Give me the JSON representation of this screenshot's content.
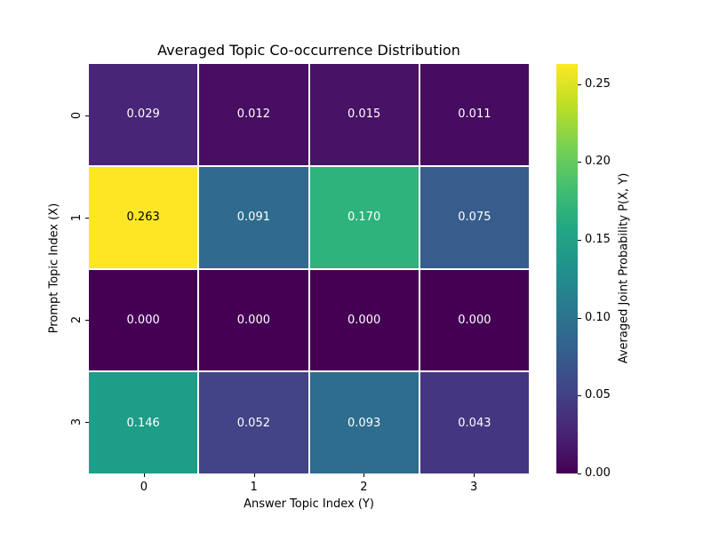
{
  "figure": {
    "background_color": "#ffffff",
    "annotation_text_light": "#ffffff",
    "annotation_text_dark": "#000000"
  },
  "chart_data": {
    "type": "heatmap",
    "title": "Averaged Topic Co-occurrence Distribution",
    "xlabel": "Answer Topic Index (Y)",
    "ylabel": "Prompt Topic Index (X)",
    "x_tick_labels": [
      "0",
      "1",
      "2",
      "3"
    ],
    "y_tick_labels": [
      "0",
      "1",
      "2",
      "3"
    ],
    "matrix": [
      [
        0.029,
        0.012,
        0.015,
        0.011
      ],
      [
        0.263,
        0.091,
        0.17,
        0.075
      ],
      [
        0.0,
        0.0,
        0.0,
        0.0
      ],
      [
        0.146,
        0.052,
        0.093,
        0.043
      ]
    ],
    "cell_labels": [
      [
        "0.029",
        "0.012",
        "0.015",
        "0.011"
      ],
      [
        "0.263",
        "0.091",
        "0.170",
        "0.075"
      ],
      [
        "0.000",
        "0.000",
        "0.000",
        "0.000"
      ],
      [
        "0.146",
        "0.052",
        "0.093",
        "0.043"
      ]
    ],
    "cell_colors": [
      [
        "#482576",
        "#470e61",
        "#481265",
        "#460c5f"
      ],
      [
        "#fde725",
        "#2f6b8e",
        "#2eb37d",
        "#375d8c"
      ],
      [
        "#440154",
        "#440154",
        "#440154",
        "#440154"
      ],
      [
        "#1e9d89",
        "#424487",
        "#2e6d8e",
        "#453681"
      ]
    ],
    "cell_text_colors": [
      [
        "#ffffff",
        "#ffffff",
        "#ffffff",
        "#ffffff"
      ],
      [
        "#000000",
        "#ffffff",
        "#ffffff",
        "#ffffff"
      ],
      [
        "#ffffff",
        "#ffffff",
        "#ffffff",
        "#ffffff"
      ],
      [
        "#ffffff",
        "#ffffff",
        "#ffffff",
        "#ffffff"
      ]
    ],
    "grid_line_color": "#ffffff",
    "colorbar": {
      "label": "Averaged Joint Probability P(X, Y)",
      "colormap": "viridis",
      "vmin": 0.0,
      "vmax": 0.263,
      "tick_labels": [
        "0.00",
        "0.05",
        "0.10",
        "0.15",
        "0.20",
        "0.25"
      ],
      "tick_values": [
        0.0,
        0.05,
        0.1,
        0.15,
        0.2,
        0.25
      ],
      "gradient_stops": [
        "#440154",
        "#482475",
        "#414487",
        "#355f8d",
        "#2a788e",
        "#21918c",
        "#22a884",
        "#44bf70",
        "#7ad151",
        "#bddf26",
        "#fde725"
      ]
    }
  }
}
